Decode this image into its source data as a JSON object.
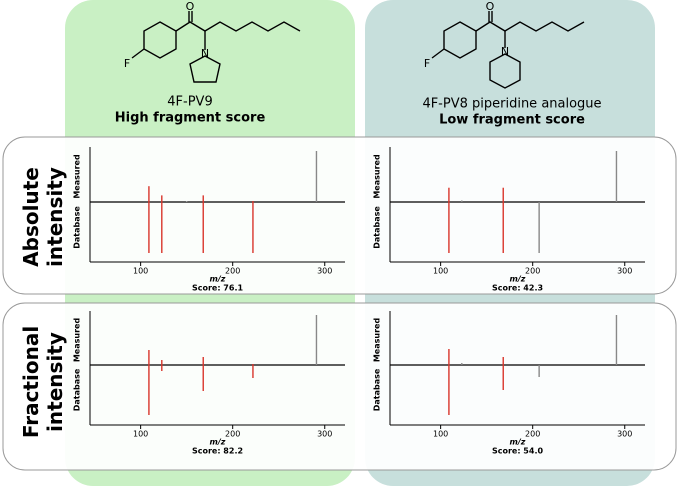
{
  "compounds": [
    {
      "name": "4F-PV9",
      "score_text": "High fragment score",
      "atoms": [
        "O",
        "F",
        "N"
      ]
    },
    {
      "name": "4F-PV8 piperidine analogue",
      "score_text": "Low fragment score",
      "atoms": [
        "O",
        "F",
        "N"
      ]
    }
  ],
  "row_labels": [
    "Absolute intensity",
    "Fractional intensity"
  ],
  "chart_data": [
    {
      "type": "mirror",
      "xlabel": "m/z",
      "annotation": "Score: 76.1",
      "xlim": [
        45,
        322
      ],
      "xticks": [
        100,
        200,
        300
      ],
      "series": [
        {
          "name": "Measured",
          "x": [
            109,
            123,
            150,
            168,
            222,
            291
          ],
          "values": [
            31,
            13,
            1,
            13,
            2,
            100
          ],
          "colors": [
            "#d9352b",
            "#d9352b",
            "#888888",
            "#d9352b",
            "#d9352b",
            "#888888"
          ]
        },
        {
          "name": "Database",
          "x": [
            109,
            123,
            168,
            222
          ],
          "values": [
            100,
            100,
            100,
            100
          ],
          "colors": [
            "#d9352b",
            "#d9352b",
            "#d9352b",
            "#d9352b"
          ]
        }
      ]
    },
    {
      "type": "mirror",
      "xlabel": "m/z",
      "annotation": "Score: 42.3",
      "xlim": [
        45,
        322
      ],
      "xticks": [
        100,
        200,
        300
      ],
      "series": [
        {
          "name": "Measured",
          "x": [
            109,
            123,
            168,
            291
          ],
          "values": [
            28,
            3,
            28,
            100
          ],
          "colors": [
            "#d9352b",
            "#888888",
            "#d9352b",
            "#888888"
          ]
        },
        {
          "name": "Database",
          "x": [
            109,
            168,
            207
          ],
          "values": [
            100,
            100,
            100
          ],
          "colors": [
            "#d9352b",
            "#d9352b",
            "#888888"
          ]
        }
      ]
    },
    {
      "type": "mirror",
      "xlabel": "m/z",
      "annotation": "Score: 82.2",
      "xlim": [
        45,
        322
      ],
      "xticks": [
        100,
        200,
        300
      ],
      "series": [
        {
          "name": "Measured",
          "x": [
            109,
            123,
            168,
            222,
            291
          ],
          "values": [
            30,
            10,
            16,
            2,
            100
          ],
          "colors": [
            "#d9352b",
            "#d9352b",
            "#d9352b",
            "#d9352b",
            "#888888"
          ]
        },
        {
          "name": "Database",
          "x": [
            109,
            123,
            168,
            222
          ],
          "values": [
            100,
            12,
            52,
            26
          ],
          "colors": [
            "#d9352b",
            "#d9352b",
            "#d9352b",
            "#d9352b"
          ]
        }
      ]
    },
    {
      "type": "mirror",
      "xlabel": "m/z",
      "annotation": "Score: 54.0",
      "xlim": [
        45,
        322
      ],
      "xticks": [
        100,
        200,
        300
      ],
      "series": [
        {
          "name": "Measured",
          "x": [
            109,
            123,
            168,
            291
          ],
          "values": [
            32,
            4,
            16,
            100
          ],
          "colors": [
            "#d9352b",
            "#888888",
            "#d9352b",
            "#888888"
          ]
        },
        {
          "name": "Database",
          "x": [
            109,
            168,
            207
          ],
          "values": [
            100,
            50,
            24
          ],
          "colors": [
            "#d9352b",
            "#d9352b",
            "#888888"
          ]
        }
      ]
    }
  ]
}
